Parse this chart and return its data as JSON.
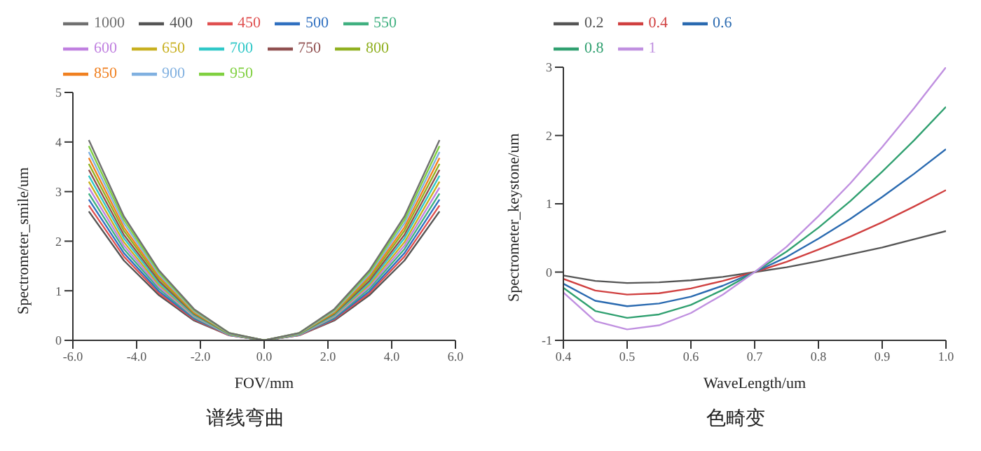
{
  "chart_data": [
    {
      "type": "line",
      "xlabel": "FOV/mm",
      "ylabel": "Spectrometer_smile/um",
      "annotations": [
        "谱线弯曲"
      ],
      "legend": "top left",
      "x": [
        -5.5,
        -4.4,
        -3.3,
        -2.2,
        -1.1,
        0,
        1.1,
        2.2,
        3.3,
        4.4,
        5.5
      ],
      "xlim": [
        -6,
        6
      ],
      "xticks": [
        {
          "value": -6,
          "label": "-6.0"
        },
        {
          "value": -4,
          "label": "-4.0"
        },
        {
          "value": -2,
          "label": "-2.0"
        },
        {
          "value": 0,
          "label": "0.0"
        },
        {
          "value": 2,
          "label": "2.0"
        },
        {
          "value": 4,
          "label": "4.0"
        },
        {
          "value": 6,
          "label": "6.0"
        }
      ],
      "ylim": [
        0,
        5
      ],
      "yticks": [
        0,
        1,
        2,
        3,
        4,
        5
      ],
      "series": [
        {
          "name": "400",
          "color": "#555555",
          "values": [
            2.6,
            1.61,
            0.91,
            0.4,
            0.1,
            0,
            0.1,
            0.4,
            0.91,
            1.61,
            2.6
          ]
        },
        {
          "name": "450",
          "color": "#e05050",
          "values": [
            2.72,
            1.69,
            0.95,
            0.42,
            0.1,
            0,
            0.1,
            0.42,
            0.95,
            1.69,
            2.72
          ]
        },
        {
          "name": "500",
          "color": "#3070c0",
          "values": [
            2.84,
            1.76,
            0.99,
            0.44,
            0.11,
            0,
            0.11,
            0.44,
            0.99,
            1.76,
            2.84
          ]
        },
        {
          "name": "550",
          "color": "#40b080",
          "values": [
            2.96,
            1.84,
            1.04,
            0.46,
            0.11,
            0,
            0.11,
            0.46,
            1.04,
            1.84,
            2.96
          ]
        },
        {
          "name": "600",
          "color": "#c080e0",
          "values": [
            3.08,
            1.91,
            1.08,
            0.48,
            0.11,
            0,
            0.11,
            0.48,
            1.08,
            1.91,
            3.08
          ]
        },
        {
          "name": "650",
          "color": "#c8b020",
          "values": [
            3.2,
            1.98,
            1.12,
            0.5,
            0.12,
            0,
            0.12,
            0.5,
            1.12,
            1.98,
            3.2
          ]
        },
        {
          "name": "700",
          "color": "#30c8c8",
          "values": [
            3.32,
            2.06,
            1.16,
            0.51,
            0.12,
            0,
            0.12,
            0.51,
            1.16,
            2.06,
            3.32
          ]
        },
        {
          "name": "750",
          "color": "#905050",
          "values": [
            3.44,
            2.13,
            1.2,
            0.53,
            0.13,
            0,
            0.13,
            0.53,
            1.2,
            2.13,
            3.44
          ]
        },
        {
          "name": "800",
          "color": "#90b020",
          "values": [
            3.56,
            2.21,
            1.25,
            0.55,
            0.13,
            0,
            0.13,
            0.55,
            1.25,
            2.21,
            3.56
          ]
        },
        {
          "name": "850",
          "color": "#f08020",
          "values": [
            3.68,
            2.28,
            1.29,
            0.57,
            0.14,
            0,
            0.14,
            0.57,
            1.29,
            2.28,
            3.68
          ]
        },
        {
          "name": "900",
          "color": "#80b0e0",
          "values": [
            3.8,
            2.36,
            1.33,
            0.59,
            0.14,
            0,
            0.14,
            0.59,
            1.33,
            2.36,
            3.8
          ]
        },
        {
          "name": "950",
          "color": "#80d040",
          "values": [
            3.92,
            2.43,
            1.37,
            0.61,
            0.15,
            0,
            0.15,
            0.61,
            1.37,
            2.43,
            3.92
          ]
        },
        {
          "name": "1000",
          "color": "#707070",
          "values": [
            4.04,
            2.5,
            1.41,
            0.63,
            0.15,
            0,
            0.15,
            0.63,
            1.41,
            2.5,
            4.04
          ]
        }
      ]
    },
    {
      "type": "line",
      "xlabel": "WaveLength/um",
      "ylabel": "Spectrometer_keystone/um",
      "annotations": [
        "色畸变"
      ],
      "legend": "top left",
      "x": [
        0.4,
        0.45,
        0.5,
        0.55,
        0.6,
        0.65,
        0.7,
        0.75,
        0.8,
        0.85,
        0.9,
        0.95,
        1.0
      ],
      "xlim": [
        0.4,
        1.0
      ],
      "xticks": [
        0.4,
        0.5,
        0.6,
        0.7,
        0.8,
        0.9,
        {
          "value": 1,
          "label": "1.0"
        }
      ],
      "ylim": [
        -1,
        3
      ],
      "yticks": [
        -1,
        0,
        1,
        2,
        3
      ],
      "series": [
        {
          "name": "0.2",
          "color": "#555555",
          "values": [
            -0.05,
            -0.13,
            -0.16,
            -0.15,
            -0.12,
            -0.07,
            0,
            0.07,
            0.16,
            0.26,
            0.36,
            0.48,
            0.6
          ]
        },
        {
          "name": "0.4",
          "color": "#d04040",
          "values": [
            -0.1,
            -0.27,
            -0.33,
            -0.31,
            -0.24,
            -0.13,
            0,
            0.15,
            0.33,
            0.52,
            0.73,
            0.96,
            1.2
          ]
        },
        {
          "name": "0.6",
          "color": "#2a6ab0",
          "values": [
            -0.17,
            -0.42,
            -0.5,
            -0.46,
            -0.36,
            -0.2,
            0,
            0.22,
            0.49,
            0.78,
            1.1,
            1.44,
            1.8
          ]
        },
        {
          "name": "0.8",
          "color": "#30a070",
          "values": [
            -0.23,
            -0.57,
            -0.67,
            -0.62,
            -0.48,
            -0.26,
            0,
            0.3,
            0.65,
            1.04,
            1.47,
            1.93,
            2.42
          ]
        },
        {
          "name": "1",
          "color": "#c090e0",
          "values": [
            -0.3,
            -0.72,
            -0.84,
            -0.78,
            -0.6,
            -0.33,
            0,
            0.37,
            0.82,
            1.3,
            1.83,
            2.4,
            3.0
          ]
        }
      ]
    }
  ]
}
